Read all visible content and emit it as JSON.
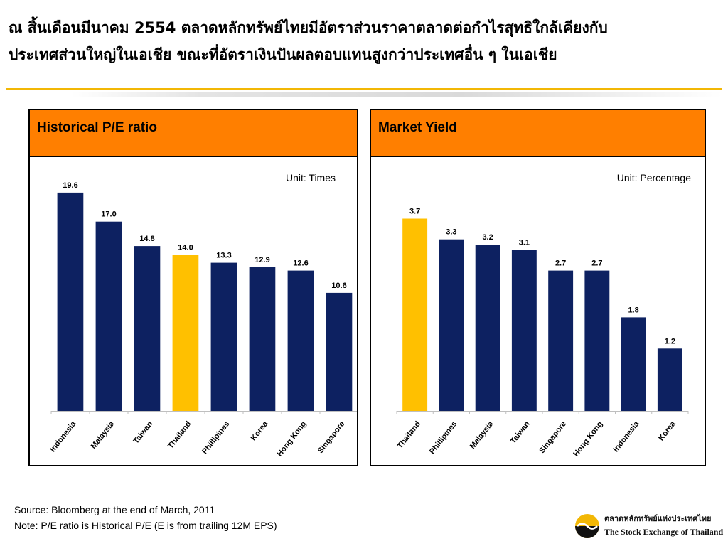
{
  "headline": {
    "line1": "ณ สิ้นเดือนมีนาคม 2554 ตลาดหลักทรัพย์ไทยมีอัตราส่วนราคาตลาดต่อกำไรสุทธิใกล้เคียงกับ",
    "line2": "ประเทศส่วนใหญ่ในเอเชีย ขณะที่อัตราเงินปันผลตอบแทนสูงกว่าประเทศอื่น ๆ ในเอเชีย"
  },
  "colors": {
    "bar": "#0D2161",
    "highlight": "#FFC000",
    "header": "#FF7F00",
    "rule": "#F2B705"
  },
  "chart_data": [
    {
      "type": "bar",
      "title": "Historical P/E ratio",
      "unit": "Unit: Times",
      "categories": [
        "Indonesia",
        "Malaysia",
        "Taiwan",
        "Thailand",
        "Phillipines",
        "Korea",
        "Hong Kong",
        "Singapore"
      ],
      "values": [
        19.6,
        17.0,
        14.8,
        14.0,
        13.3,
        12.9,
        12.6,
        10.6
      ],
      "value_labels": [
        "19.6",
        "17.0",
        "14.8",
        "14.0",
        "13.3",
        "12.9",
        "12.6",
        "10.6"
      ],
      "highlight": "Thailand",
      "ylim": [
        0,
        21
      ],
      "grid": false,
      "xlabel": "",
      "ylabel": ""
    },
    {
      "type": "bar",
      "title": "Market Yield",
      "unit": "Unit: Percentage",
      "categories": [
        "Thailand",
        "Phillipines",
        "Malaysia",
        "Taiwan",
        "Singapore",
        "Hong Kong",
        "Indonesia",
        "Korea"
      ],
      "values": [
        3.7,
        3.3,
        3.2,
        3.1,
        2.7,
        2.7,
        1.8,
        1.2
      ],
      "value_labels": [
        "3.7",
        "3.3",
        "3.2",
        "3.1",
        "2.7",
        "2.7",
        "1.8",
        "1.2"
      ],
      "highlight": "Thailand",
      "ylim": [
        0,
        4.5
      ],
      "grid": false,
      "xlabel": "",
      "ylabel": ""
    }
  ],
  "footnotes": {
    "source": "Source: Bloomberg at the end of March, 2011",
    "note": "Note: P/E ratio is Historical P/E (E is from trailing 12M EPS)"
  },
  "logo": {
    "name_th": "ตลาดหลักทรัพย์แห่งประเทศไทย",
    "name_en": "The Stock Exchange of Thailand",
    "icon": "set-logo-icon"
  }
}
